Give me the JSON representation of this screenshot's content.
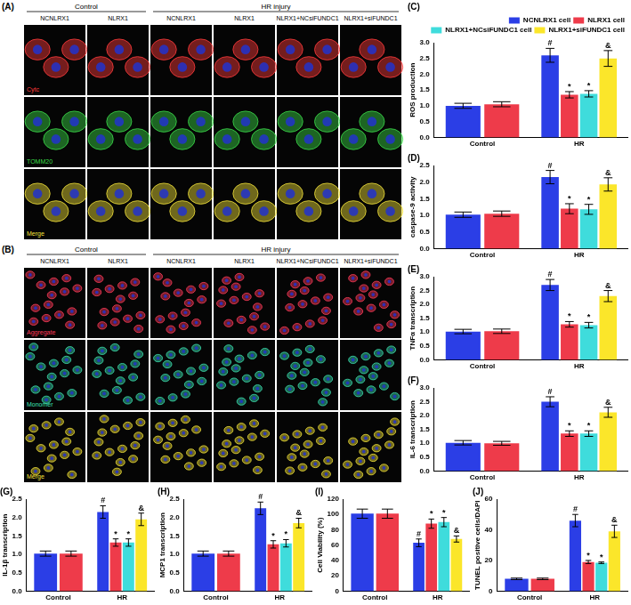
{
  "panels": [
    {
      "label": "(A)",
      "groups": [
        {
          "title": "Control",
          "columns": [
            "NCNLRX1",
            "NLRX1"
          ]
        },
        {
          "title": "HR injury",
          "columns": [
            "NCNLRX1",
            "NLRX1",
            "NLRX1+NCsiFUNDC1",
            "NLRX1+siFUNDC1"
          ]
        }
      ],
      "rows": [
        {
          "label": "Cytc",
          "color": "#ff3b3b"
        },
        {
          "label": "TOMM20",
          "color": "#3bdc4a"
        },
        {
          "label": "Merge",
          "color": "#f2e23a"
        }
      ]
    },
    {
      "label": "(B)",
      "groups": [
        {
          "title": "Control",
          "columns": [
            "NCNLRX1",
            "NLRX1"
          ]
        },
        {
          "title": "HR injury",
          "columns": [
            "NCNLRX1",
            "NLRX1",
            "NLRX1+NCsiFUNDC1",
            "NLRX1+siFUNDC1"
          ]
        }
      ],
      "rows": [
        {
          "label": "Aggregate",
          "color": "#ff3b5a"
        },
        {
          "label": "Monomer",
          "color": "#3be0b0"
        },
        {
          "label": "Merge",
          "color": "#f2e23a"
        }
      ]
    }
  ],
  "chart_data": [
    {
      "type": "bar",
      "title": "(C)",
      "y_label": "ROS production",
      "categories": [
        "Control",
        "HR"
      ],
      "ylim": [
        0,
        3
      ],
      "yticks": [
        {
          "value": 0,
          "label": "0.0"
        },
        0.5,
        {
          "value": 1,
          "label": "1.0"
        },
        1.5,
        {
          "value": 2,
          "label": "2.0"
        },
        2.5,
        {
          "value": 3,
          "label": "3.0"
        }
      ],
      "grid": false,
      "legend": "upper right",
      "series": [
        {
          "name": "NCNLRX1 cell",
          "color": "#2b3ee6",
          "values": [
            1.0,
            2.6
          ],
          "errors": [
            0.08,
            0.22
          ],
          "annotations": [
            null,
            "#"
          ]
        },
        {
          "name": "NLRX1 cell",
          "color": "#ee3b4a",
          "values": [
            1.05,
            1.35
          ],
          "errors": [
            0.08,
            0.1
          ],
          "annotations": [
            null,
            "*"
          ]
        },
        {
          "name": "NLRX1+NCsiFUNDC1 cell",
          "color": "#3fdcdc",
          "values": [
            null,
            1.38
          ],
          "errors": [
            null,
            0.1
          ],
          "annotations": [
            null,
            "*"
          ]
        },
        {
          "name": "NLRX1+siFUNDC1 cell",
          "color": "#fbe62a",
          "values": [
            null,
            2.5
          ],
          "errors": [
            null,
            0.25
          ],
          "annotations": [
            null,
            "&"
          ]
        }
      ]
    },
    {
      "type": "bar",
      "title": "(D)",
      "y_label": "caspase-9 activity",
      "categories": [
        "Control",
        "HR"
      ],
      "ylim": [
        0,
        2.5
      ],
      "yticks": [
        {
          "value": 0,
          "label": "0.0"
        },
        0.5,
        {
          "value": 1,
          "label": "1.0"
        },
        1.5,
        {
          "value": 2,
          "label": "2.0"
        },
        2.5
      ],
      "grid": false,
      "series": [
        {
          "name": "NCNLRX1 cell",
          "color": "#2b3ee6",
          "values": [
            1.02,
            2.15
          ],
          "errors": [
            0.08,
            0.2
          ],
          "annotations": [
            null,
            "#"
          ]
        },
        {
          "name": "NLRX1 cell",
          "color": "#ee3b4a",
          "values": [
            1.05,
            1.2
          ],
          "errors": [
            0.08,
            0.15
          ],
          "annotations": [
            null,
            "*"
          ]
        },
        {
          "name": "NLRX1+NCsiFUNDC1 cell",
          "color": "#3fdcdc",
          "values": [
            null,
            1.18
          ],
          "errors": [
            null,
            0.15
          ],
          "annotations": [
            null,
            "*"
          ]
        },
        {
          "name": "NLRX1+siFUNDC1 cell",
          "color": "#fbe62a",
          "values": [
            null,
            1.93
          ],
          "errors": [
            null,
            0.2
          ],
          "annotations": [
            null,
            "&"
          ]
        }
      ]
    },
    {
      "type": "bar",
      "title": "(E)",
      "y_label": "TNFα transcription",
      "categories": [
        "Control",
        "HR"
      ],
      "ylim": [
        0,
        3
      ],
      "yticks": [
        {
          "value": 0,
          "label": "0.0"
        },
        0.5,
        {
          "value": 1,
          "label": "1.0"
        },
        1.5,
        {
          "value": 2,
          "label": "2.0"
        },
        2.5,
        {
          "value": 3,
          "label": "3.0"
        }
      ],
      "grid": false,
      "series": [
        {
          "name": "NCNLRX1 cell",
          "color": "#2b3ee6",
          "values": [
            1.02,
            2.7
          ],
          "errors": [
            0.08,
            0.2
          ],
          "annotations": [
            null,
            "#"
          ]
        },
        {
          "name": "NLRX1 cell",
          "color": "#ee3b4a",
          "values": [
            1.03,
            1.28
          ],
          "errors": [
            0.08,
            0.1
          ],
          "annotations": [
            null,
            "*"
          ]
        },
        {
          "name": "NLRX1+NCsiFUNDC1 cell",
          "color": "#3fdcdc",
          "values": [
            null,
            1.25
          ],
          "errors": [
            null,
            0.1
          ],
          "annotations": [
            null,
            "*"
          ]
        },
        {
          "name": "NLRX1+siFUNDC1 cell",
          "color": "#fbe62a",
          "values": [
            null,
            2.3
          ],
          "errors": [
            null,
            0.2
          ],
          "annotations": [
            null,
            "&"
          ]
        }
      ]
    },
    {
      "type": "bar",
      "title": "(F)",
      "y_label": "IL-6 transcription",
      "categories": [
        "Control",
        "HR"
      ],
      "ylim": [
        0,
        3
      ],
      "yticks": [
        {
          "value": 0,
          "label": "0.0"
        },
        0.5,
        {
          "value": 1,
          "label": "1.0"
        },
        1.5,
        {
          "value": 2,
          "label": "2.0"
        },
        2.5,
        {
          "value": 3,
          "label": "3.0"
        }
      ],
      "grid": false,
      "series": [
        {
          "name": "NCNLRX1 cell",
          "color": "#2b3ee6",
          "values": [
            1.02,
            2.5
          ],
          "errors": [
            0.08,
            0.18
          ],
          "annotations": [
            null,
            "#"
          ]
        },
        {
          "name": "NLRX1 cell",
          "color": "#ee3b4a",
          "values": [
            1.0,
            1.35
          ],
          "errors": [
            0.07,
            0.1
          ],
          "annotations": [
            null,
            "*"
          ]
        },
        {
          "name": "NLRX1+NCsiFUNDC1 cell",
          "color": "#3fdcdc",
          "values": [
            null,
            1.35
          ],
          "errors": [
            null,
            0.1
          ],
          "annotations": [
            null,
            "*"
          ]
        },
        {
          "name": "NLRX1+siFUNDC1 cell",
          "color": "#fbe62a",
          "values": [
            null,
            2.12
          ],
          "errors": [
            null,
            0.18
          ],
          "annotations": [
            null,
            "&"
          ]
        }
      ]
    },
    {
      "type": "bar",
      "title": "(G)",
      "y_label": "IL-1β transcription",
      "categories": [
        "Control",
        "HR"
      ],
      "ylim": [
        0,
        2.5
      ],
      "yticks": [
        {
          "value": 0,
          "label": "0.0"
        },
        0.5,
        {
          "value": 1,
          "label": "1.0"
        },
        1.5,
        {
          "value": 2,
          "label": "2.0"
        },
        2.5
      ],
      "grid": false,
      "series": [
        {
          "name": "NCNLRX1 cell",
          "color": "#2b3ee6",
          "values": [
            1.02,
            2.15
          ],
          "errors": [
            0.07,
            0.17
          ],
          "annotations": [
            null,
            "#"
          ]
        },
        {
          "name": "NLRX1 cell",
          "color": "#ee3b4a",
          "values": [
            1.02,
            1.32
          ],
          "errors": [
            0.07,
            0.1
          ],
          "annotations": [
            null,
            "*"
          ]
        },
        {
          "name": "NLRX1+NCsiFUNDC1 cell",
          "color": "#3fdcdc",
          "values": [
            null,
            1.32
          ],
          "errors": [
            null,
            0.1
          ],
          "annotations": [
            null,
            "*"
          ]
        },
        {
          "name": "NLRX1+siFUNDC1 cell",
          "color": "#fbe62a",
          "values": [
            null,
            1.95
          ],
          "errors": [
            null,
            0.17
          ],
          "annotations": [
            null,
            "&"
          ]
        }
      ]
    },
    {
      "type": "bar",
      "title": "(H)",
      "y_label": "MCP1 transcription",
      "categories": [
        "Control",
        "HR"
      ],
      "ylim": [
        0,
        2.5
      ],
      "yticks": [
        {
          "value": 0,
          "label": "0.0"
        },
        0.5,
        {
          "value": 1,
          "label": "1.0"
        },
        1.5,
        {
          "value": 2,
          "label": "2.0"
        },
        2.5
      ],
      "grid": false,
      "series": [
        {
          "name": "NCNLRX1 cell",
          "color": "#2b3ee6",
          "values": [
            1.02,
            2.25
          ],
          "errors": [
            0.07,
            0.17
          ],
          "annotations": [
            null,
            "#"
          ]
        },
        {
          "name": "NLRX1 cell",
          "color": "#ee3b4a",
          "values": [
            1.02,
            1.27
          ],
          "errors": [
            0.07,
            0.1
          ],
          "annotations": [
            null,
            "*"
          ]
        },
        {
          "name": "NLRX1+NCsiFUNDC1 cell",
          "color": "#3fdcdc",
          "values": [
            null,
            1.3
          ],
          "errors": [
            null,
            0.1
          ],
          "annotations": [
            null,
            "*"
          ]
        },
        {
          "name": "NLRX1+siFUNDC1 cell",
          "color": "#fbe62a",
          "values": [
            null,
            1.85
          ],
          "errors": [
            null,
            0.13
          ],
          "annotations": [
            null,
            "&"
          ]
        }
      ]
    },
    {
      "type": "bar",
      "title": "(I)",
      "y_label": "Cell Viability (%)",
      "categories": [
        "Control",
        "HR"
      ],
      "ylim": [
        0,
        120
      ],
      "yticks": [
        0,
        20,
        40,
        60,
        80,
        100,
        120
      ],
      "grid": false,
      "series": [
        {
          "name": "NCNLRX1 cell",
          "color": "#2b3ee6",
          "values": [
            101,
            63
          ],
          "errors": [
            6,
            5
          ],
          "annotations": [
            null,
            "#"
          ]
        },
        {
          "name": "NLRX1 cell",
          "color": "#ee3b4a",
          "values": [
            101,
            88
          ],
          "errors": [
            6,
            6
          ],
          "annotations": [
            null,
            "*"
          ]
        },
        {
          "name": "NLRX1+NCsiFUNDC1 cell",
          "color": "#3fdcdc",
          "values": [
            null,
            90
          ],
          "errors": [
            null,
            6
          ],
          "annotations": [
            null,
            "*"
          ]
        },
        {
          "name": "NLRX1+siFUNDC1 cell",
          "color": "#fbe62a",
          "values": [
            null,
            68
          ],
          "errors": [
            null,
            4
          ],
          "annotations": [
            null,
            "&"
          ]
        }
      ]
    },
    {
      "type": "bar",
      "title": "(J)",
      "y_label": "TUNEL positive cells/DAPI",
      "categories": [
        "Control",
        "HR"
      ],
      "ylim": [
        0,
        60
      ],
      "yticks": [
        0,
        20,
        40,
        60
      ],
      "grid": false,
      "series": [
        {
          "name": "NCNLRX1 cell",
          "color": "#2b3ee6",
          "values": [
            8,
            46
          ],
          "errors": [
            0.5,
            4
          ],
          "annotations": [
            null,
            "#"
          ]
        },
        {
          "name": "NLRX1 cell",
          "color": "#ee3b4a",
          "values": [
            8,
            19
          ],
          "errors": [
            0.5,
            1
          ],
          "annotations": [
            null,
            "*"
          ]
        },
        {
          "name": "NLRX1+NCsiFUNDC1 cell",
          "color": "#3fdcdc",
          "values": [
            null,
            18.5
          ],
          "errors": [
            null,
            0.5
          ],
          "annotations": [
            null,
            "*"
          ]
        },
        {
          "name": "NLRX1+siFUNDC1 cell",
          "color": "#fbe62a",
          "values": [
            null,
            39
          ],
          "errors": [
            null,
            4
          ],
          "annotations": [
            null,
            "&"
          ]
        }
      ]
    }
  ]
}
